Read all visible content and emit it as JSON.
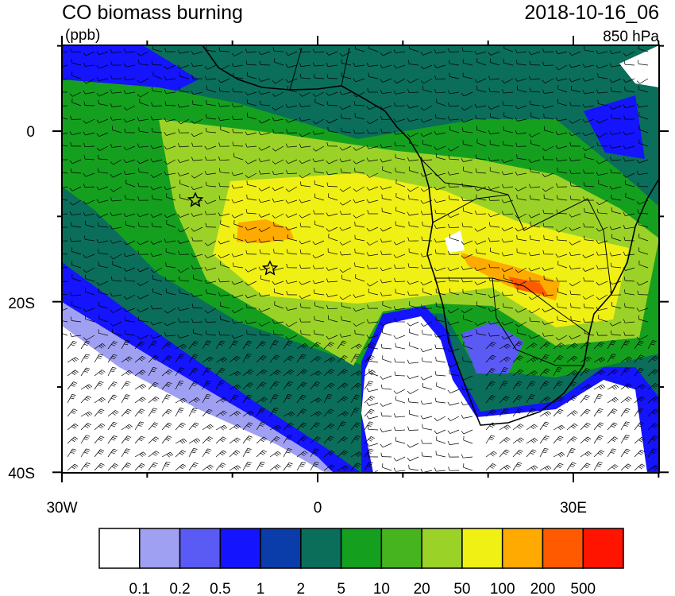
{
  "header": {
    "title": "CO biomass burning",
    "units": "(ppb)",
    "time": "2018-10-16_06",
    "level": "850 hPa"
  },
  "axes": {
    "y_labels": [
      "0",
      "20S",
      "40S"
    ],
    "x_labels": [
      "30W",
      "0",
      "30E"
    ]
  },
  "colorbar": {
    "colors": [
      "#ffffff",
      "#a0a0f2",
      "#5a5af5",
      "#1414ff",
      "#0a3caa",
      "#0a6e5a",
      "#14a01e",
      "#46b41e",
      "#9bd228",
      "#f0f014",
      "#ffaa00",
      "#ff5a00",
      "#ff1400"
    ],
    "labels": [
      "0.1",
      "0.2",
      "0.5",
      "1",
      "2",
      "5",
      "10",
      "20",
      "50",
      "100",
      "200",
      "500"
    ]
  }
}
